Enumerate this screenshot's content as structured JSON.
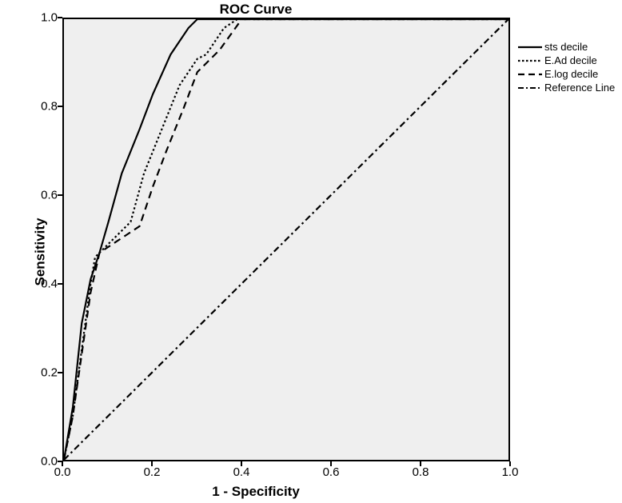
{
  "chart": {
    "type": "line",
    "title": "ROC Curve",
    "title_fontsize": 17,
    "xlabel": "1 - Specificity",
    "ylabel": "Sensitivity",
    "label_fontsize": 17,
    "xlim": [
      0.0,
      1.0
    ],
    "ylim": [
      0.0,
      1.0
    ],
    "xtick_step": 0.2,
    "ytick_step": 0.2,
    "xticks": [
      "0.0",
      "0.2",
      "0.4",
      "0.6",
      "0.8",
      "1.0"
    ],
    "yticks": [
      "0.0",
      "0.2",
      "0.4",
      "0.6",
      "0.8",
      "1.0"
    ],
    "tick_fontsize": 15,
    "background_color": "#efefef",
    "axis_color": "#000000",
    "line_width": 2.2,
    "series": [
      {
        "name": "sts decile",
        "label": "sts decile",
        "dash": "solid",
        "color": "#000000",
        "points": [
          [
            0.0,
            0.0
          ],
          [
            0.02,
            0.12
          ],
          [
            0.04,
            0.31
          ],
          [
            0.06,
            0.41
          ],
          [
            0.08,
            0.47
          ],
          [
            0.1,
            0.54
          ],
          [
            0.13,
            0.65
          ],
          [
            0.17,
            0.75
          ],
          [
            0.2,
            0.83
          ],
          [
            0.24,
            0.92
          ],
          [
            0.28,
            0.98
          ],
          [
            0.3,
            1.0
          ],
          [
            1.0,
            1.0
          ]
        ]
      },
      {
        "name": "E.Ad decile",
        "label": "E.Ad decile",
        "dash": "dot",
        "color": "#000000",
        "points": [
          [
            0.0,
            0.0
          ],
          [
            0.02,
            0.1
          ],
          [
            0.04,
            0.25
          ],
          [
            0.06,
            0.4
          ],
          [
            0.07,
            0.46
          ],
          [
            0.1,
            0.49
          ],
          [
            0.13,
            0.52
          ],
          [
            0.15,
            0.54
          ],
          [
            0.18,
            0.65
          ],
          [
            0.22,
            0.75
          ],
          [
            0.26,
            0.85
          ],
          [
            0.3,
            0.91
          ],
          [
            0.32,
            0.92
          ],
          [
            0.36,
            0.98
          ],
          [
            0.39,
            1.0
          ],
          [
            1.0,
            1.0
          ]
        ]
      },
      {
        "name": "E.log decile",
        "label": "E.log decile",
        "dash": "dash",
        "color": "#000000",
        "points": [
          [
            0.0,
            0.0
          ],
          [
            0.02,
            0.1
          ],
          [
            0.04,
            0.24
          ],
          [
            0.06,
            0.38
          ],
          [
            0.08,
            0.47
          ],
          [
            0.11,
            0.49
          ],
          [
            0.14,
            0.51
          ],
          [
            0.17,
            0.53
          ],
          [
            0.2,
            0.62
          ],
          [
            0.23,
            0.7
          ],
          [
            0.27,
            0.8
          ],
          [
            0.3,
            0.88
          ],
          [
            0.32,
            0.9
          ],
          [
            0.35,
            0.93
          ],
          [
            0.4,
            1.0
          ],
          [
            1.0,
            1.0
          ]
        ]
      },
      {
        "name": "Reference Line",
        "label": "Reference Line",
        "dash": "dashdot",
        "color": "#000000",
        "points": [
          [
            0.0,
            0.0
          ],
          [
            1.0,
            1.0
          ]
        ]
      }
    ]
  },
  "legend": {
    "position": "right-outside",
    "items": [
      {
        "label": "sts decile",
        "dash": "solid"
      },
      {
        "label": "E.Ad decile",
        "dash": "dot"
      },
      {
        "label": "E.log decile",
        "dash": "dash"
      },
      {
        "label": "Reference Line",
        "dash": "dashdot"
      }
    ]
  }
}
